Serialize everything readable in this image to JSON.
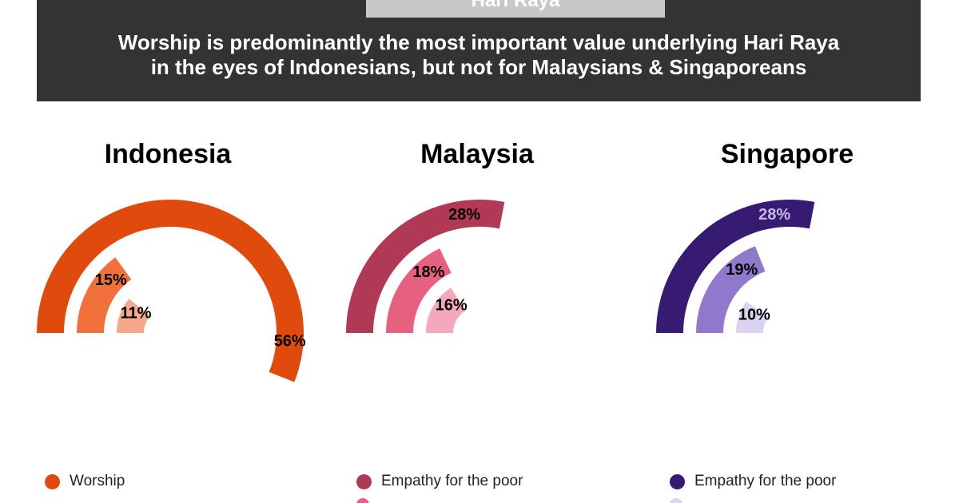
{
  "header": {
    "tag": "Hari Raya",
    "title_line1": "Worship is predominantly the most important value underlying Hari Raya",
    "title_line2": "in the eyes of Indonesians, but not for Malaysians & Singaporeans"
  },
  "chart_data": [
    {
      "type": "radial-bar",
      "title": "Indonesia",
      "max": 100,
      "series": [
        {
          "value": 56,
          "label": "56%",
          "color": "#e04a0c",
          "label_color": "#000000"
        },
        {
          "value": 15,
          "label": "15%",
          "color": "#f2703a",
          "label_color": "#000000"
        },
        {
          "value": 11,
          "label": "11%",
          "color": "#f5a88a",
          "label_color": "#000000"
        }
      ],
      "legend": [
        {
          "name": "Worship",
          "color": "#e04a0c"
        }
      ]
    },
    {
      "type": "radial-bar",
      "title": "Malaysia",
      "max": 100,
      "series": [
        {
          "value": 28,
          "label": "28%",
          "color": "#b03a55",
          "label_color": "#000000"
        },
        {
          "value": 18,
          "label": "18%",
          "color": "#e8607f",
          "label_color": "#000000"
        },
        {
          "value": 16,
          "label": "16%",
          "color": "#f6a8bb",
          "label_color": "#000000"
        }
      ],
      "legend": [
        {
          "name": "Empathy for the poor",
          "color": "#b03a55"
        }
      ]
    },
    {
      "type": "radial-bar",
      "title": "Singapore",
      "max": 100,
      "series": [
        {
          "value": 28,
          "label": "28%",
          "color": "#371a72",
          "label_color": "#c7b8ea"
        },
        {
          "value": 19,
          "label": "19%",
          "color": "#9078cc",
          "label_color": "#000000"
        },
        {
          "value": 10,
          "label": "10%",
          "color": "#dcd3f3",
          "label_color": "#000000"
        }
      ],
      "legend": [
        {
          "name": "Empathy for the poor",
          "color": "#371a72"
        }
      ]
    }
  ]
}
